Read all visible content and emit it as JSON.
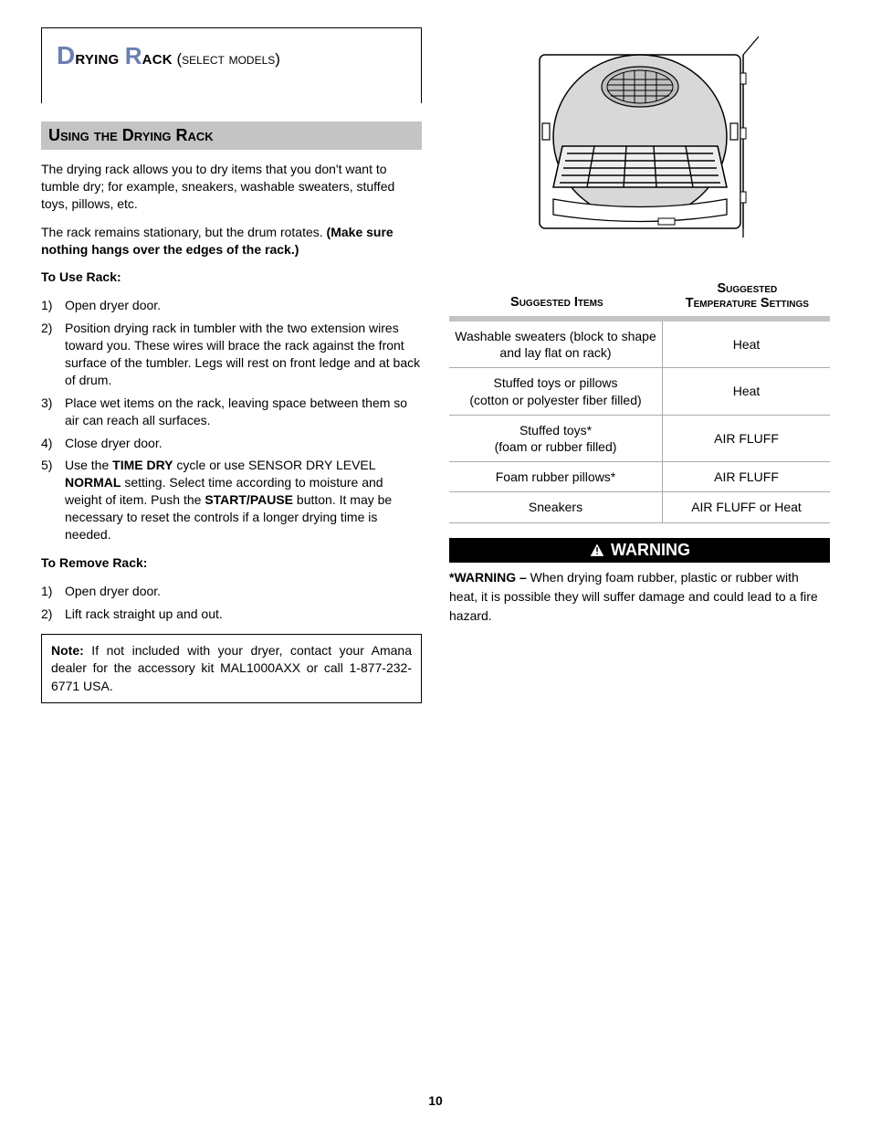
{
  "tab": {
    "title_main": "Drying Rack",
    "title_sub": " (select models)"
  },
  "section_heading": "Using the Drying Rack",
  "intro": "The drying rack allows you to dry items that you don't want to tumble dry; for example, sneakers, washable sweaters, stuffed toys, pillows, etc.",
  "stationary": "The rack remains stationary, but the drum rotates. ",
  "stationary_bold": "(Make sure nothing hangs over the edges of the rack.)",
  "use_heading": "To Use Rack:",
  "use_steps": [
    "Open dryer door.",
    "Position drying rack in tumbler with the two extension wires toward you. These wires will brace the rack against the front surface of the tumbler.  Legs will rest on front ledge and at back of drum.",
    "Place wet items on the rack, leaving space between them so air can reach all surfaces.",
    "Close dryer door."
  ],
  "use_step5_pre": "Use the ",
  "use_step5_b1": "TIME DRY",
  "use_step5_mid": " cycle or use SENSOR DRY LEVEL ",
  "use_step5_b2": "NORMAL",
  "use_step5_mid2": " setting.  Select time according to moisture and weight of item.  Push the ",
  "use_step5_b3": "START/PAUSE",
  "use_step5_end": " button.  It may be necessary to reset the controls if a longer drying time is needed.",
  "remove_heading": "To Remove Rack:",
  "remove_steps": [
    "Open dryer door.",
    "Lift rack straight up and out."
  ],
  "note_bold": "Note:",
  "note_text": " If not included with your dryer, contact your Amana dealer for the accessory kit MAL1000AXX or call 1-877-232-6771 USA.",
  "table": {
    "header1": "Suggested Items",
    "header2_l1": "Suggested",
    "header2_l2": "Temperature Settings",
    "rows": [
      {
        "item": "Washable sweaters (block to shape and lay flat on rack)",
        "setting": "Heat"
      },
      {
        "item": "Stuffed toys or pillows\n(cotton or polyester fiber filled)",
        "setting": "Heat"
      },
      {
        "item": "Stuffed toys*\n(foam or rubber filled)",
        "setting": "AIR FLUFF"
      },
      {
        "item": "Foam rubber pillows*",
        "setting": "AIR FLUFF"
      },
      {
        "item": "Sneakers",
        "setting": "AIR FLUFF or Heat"
      }
    ]
  },
  "warning_label": "WARNING",
  "warning_bold": "*WARNING –",
  "warning_text": " When drying foam rubber, plastic or rubber with heat, it is possible they will suffer damage and could lead to a fire hazard.",
  "page_number": "10",
  "colors": {
    "accent": "#6a7fb3",
    "section_bg": "#c4c4c4",
    "border": "#aaaaaa",
    "text": "#000000",
    "bg": "#ffffff"
  }
}
